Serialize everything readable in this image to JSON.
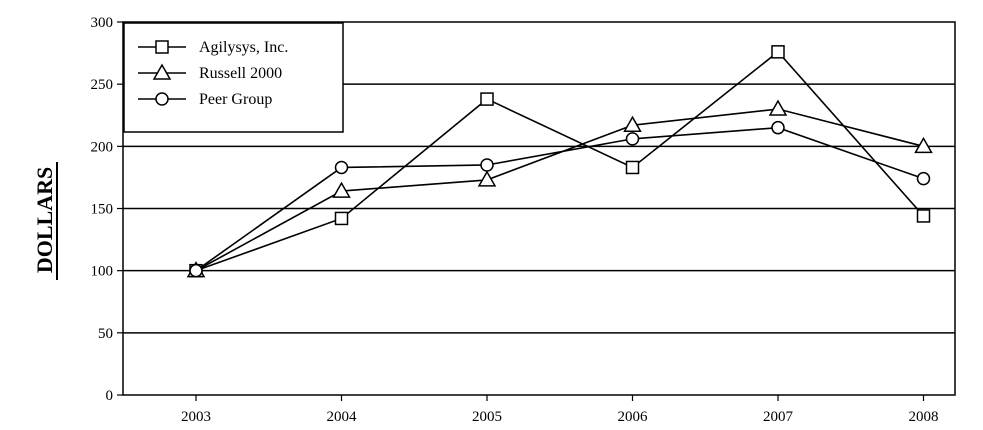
{
  "chart_data": {
    "type": "line",
    "title": "",
    "xlabel": "",
    "ylabel": "DOLLARS",
    "categories": [
      "2003",
      "2004",
      "2005",
      "2006",
      "2007",
      "2008"
    ],
    "ylim": [
      0,
      300
    ],
    "yticks": [
      0,
      50,
      100,
      150,
      200,
      250,
      300
    ],
    "grid": "horizontal",
    "legend_position": "top-left",
    "series": [
      {
        "name": "Agilysys, Inc.",
        "marker": "square",
        "values": [
          100,
          142,
          238,
          183,
          276,
          144
        ]
      },
      {
        "name": "Russell 2000",
        "marker": "triangle",
        "values": [
          100,
          164,
          173,
          217,
          230,
          200
        ]
      },
      {
        "name": "Peer Group",
        "marker": "circle",
        "values": [
          100,
          183,
          185,
          206,
          215,
          174
        ]
      }
    ]
  }
}
